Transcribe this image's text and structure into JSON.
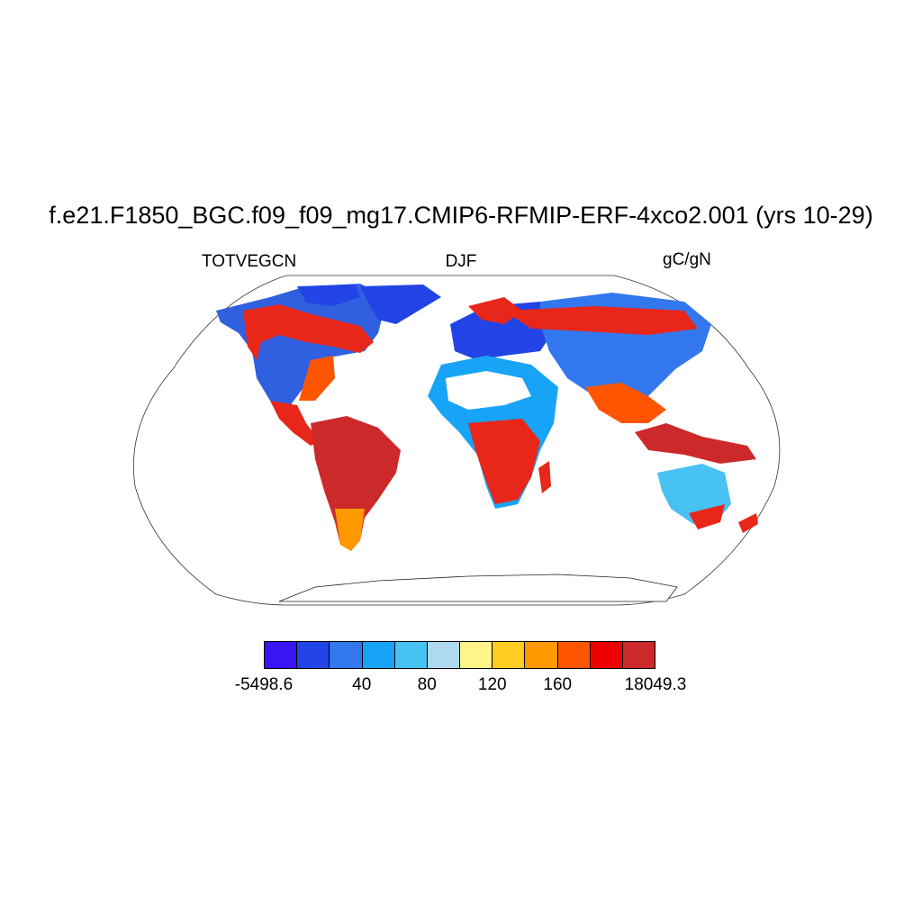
{
  "title": "f.e21.F1850_BGC.f09_f09_mg17.CMIP6-RFMIP-ERF-4xco2.001 (yrs 10-29)",
  "left_subtitle": "TOTVEGCN",
  "center_subtitle": "DJF",
  "right_subtitle": "gC/gN",
  "projection": "Robinson",
  "colorbar": {
    "colors": [
      "#3a14f5",
      "#2244e6",
      "#3377ee",
      "#17a4f7",
      "#48c1f3",
      "#aed9f1",
      "#fff48a",
      "#ffcc22",
      "#ff9900",
      "#ff5500",
      "#ee0000",
      "#cc2a2a"
    ],
    "labels": [
      {
        "text": "-5498.6",
        "boundary": 0
      },
      {
        "text": "40",
        "boundary": 3
      },
      {
        "text": "80",
        "boundary": 5
      },
      {
        "text": "120",
        "boundary": 7
      },
      {
        "text": "160",
        "boundary": 9
      },
      {
        "text": "18049.3",
        "boundary": 12
      }
    ]
  }
}
